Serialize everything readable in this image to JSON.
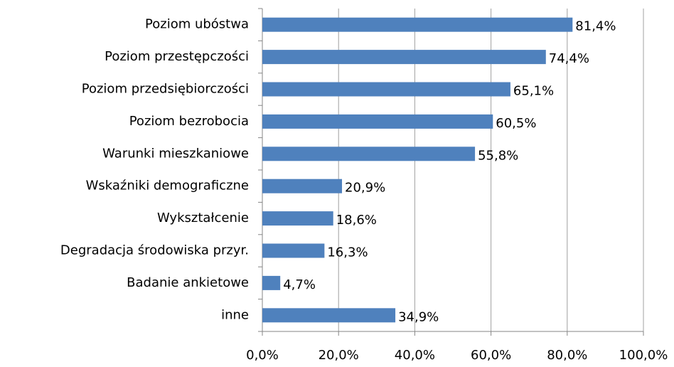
{
  "chart_data": {
    "type": "bar",
    "orientation": "horizontal",
    "categories": [
      "Poziom ubóstwa",
      "Poziom przestępczości",
      "Poziom przedsiębiorczości",
      "Poziom bezrobocia",
      "Warunki mieszkaniowe",
      "Wskaźniki demograficzne",
      "Wykształcenie",
      "Degradacja środowiska przyr.",
      "Badanie ankietowe",
      "inne"
    ],
    "values": [
      81.4,
      74.4,
      65.1,
      60.5,
      55.8,
      20.9,
      18.6,
      16.3,
      4.7,
      34.9
    ],
    "value_labels": [
      "81,4%",
      "74,4%",
      "65,1%",
      "60,5%",
      "55,8%",
      "20,9%",
      "18,6%",
      "16,3%",
      "4,7%",
      "34,9%"
    ],
    "color": "#4f81bd",
    "xlim": [
      0,
      100
    ],
    "xticks": [
      {
        "value": 0,
        "label": "0,0%"
      },
      {
        "value": 20,
        "label": "20,0%"
      },
      {
        "value": 40,
        "label": "40,0%"
      },
      {
        "value": 60,
        "label": "60,0%"
      },
      {
        "value": 80,
        "label": "80,0%"
      },
      {
        "value": 100,
        "label": "100,0%"
      }
    ],
    "grid": true
  }
}
